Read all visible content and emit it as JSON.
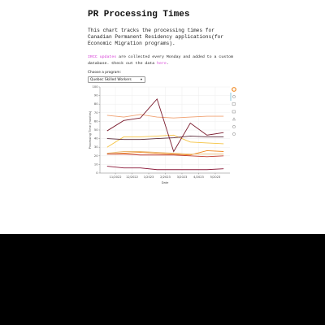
{
  "header": {
    "title": "PR Processing Times"
  },
  "intro": "This chart tracks the processing times for Canadian Permanent Residency applications(for Economic Migration programs).",
  "note": {
    "link": "IRCC updates",
    "text": " are collected every Monday and added to a custom database. Check out the data ",
    "link2": "here",
    "end": "."
  },
  "selector": {
    "label": "Choose a program:",
    "selected": "Quebec Skilled Workers"
  },
  "chart_data": {
    "type": "line",
    "x": [
      -0.5,
      0.5,
      1.5,
      2.5,
      3.5,
      4.5,
      5.5,
      6.5
    ],
    "xlim": [
      -0.93,
      6.88
    ],
    "xticks": [
      {
        "value": 0,
        "label": "11/2022"
      },
      {
        "value": 1,
        "label": "12/2022"
      },
      {
        "value": 2,
        "label": "1/2023"
      },
      {
        "value": 3,
        "label": "2/2023"
      },
      {
        "value": 4,
        "label": "3/2023"
      },
      {
        "value": 5,
        "label": "4/2023"
      },
      {
        "value": 6,
        "label": "5/2023"
      }
    ],
    "ylim": [
      0,
      100
    ],
    "yticks": [
      0,
      10,
      20,
      30,
      40,
      50,
      60,
      70,
      80,
      90,
      100
    ],
    "x_label": "Date",
    "y_label": "Processing Time (months)",
    "grid": true,
    "series": [
      {
        "color": "#f0a070",
        "values": [
          67,
          65,
          68,
          65,
          64,
          65,
          66,
          66
        ]
      },
      {
        "color": "#f5c342",
        "values": [
          30,
          42,
          42,
          43,
          44,
          36,
          35,
          34
        ]
      },
      {
        "color": "#5a2a3a",
        "values": [
          40,
          39,
          39,
          40,
          41,
          43,
          42,
          42
        ]
      },
      {
        "color": "#f08a24",
        "values": [
          22,
          23,
          24,
          23,
          22,
          21,
          26,
          25
        ]
      },
      {
        "color": "#c0392b",
        "values": [
          22,
          22,
          21,
          21,
          21,
          20,
          19,
          20
        ]
      },
      {
        "color": "#e9b872",
        "values": [
          23,
          25,
          25,
          24,
          23,
          22,
          22,
          22
        ]
      },
      {
        "color": "#8b1a3a",
        "values": [
          8,
          6,
          6,
          4,
          4,
          4,
          4,
          5
        ]
      },
      {
        "color": "#7b1c2e",
        "values": [
          49,
          61,
          64,
          86,
          25,
          58,
          44,
          47
        ]
      }
    ]
  }
}
